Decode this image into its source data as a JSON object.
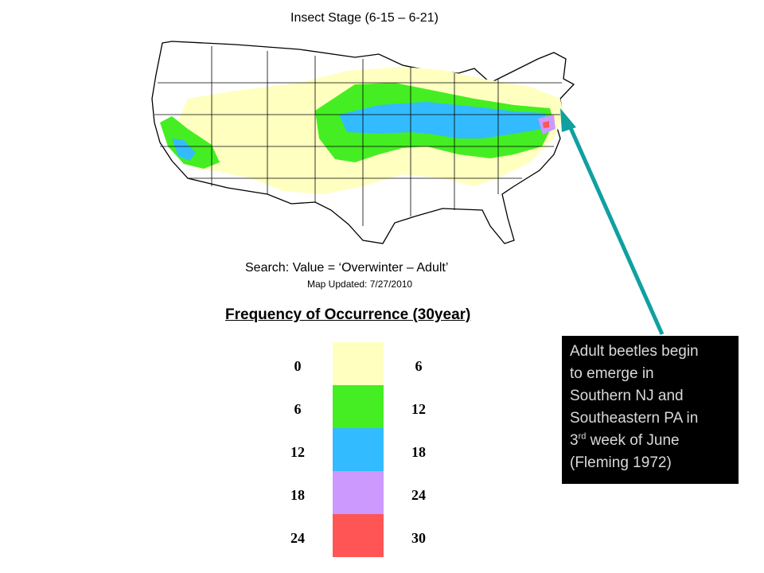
{
  "title": "Insect Stage (6-15 – 6-21)",
  "search_label": "Search: Value = ‘Overwinter – Adult’",
  "map_updated": "Map Updated: 7/27/2010",
  "legend": {
    "title": "Frequency of Occurrence (30year)",
    "classes": [
      {
        "low": "0",
        "high": "6",
        "color": "#ffffc0"
      },
      {
        "low": "6",
        "high": "12",
        "color": "#44ee22"
      },
      {
        "low": "12",
        "high": "18",
        "color": "#33bbff"
      },
      {
        "low": "18",
        "high": "24",
        "color": "#cc99ff"
      },
      {
        "low": "24",
        "high": "30",
        "color": "#ff5555"
      }
    ]
  },
  "callout": {
    "line1": "Adult beetles begin",
    "line2": "to emerge in",
    "line3": "Southern NJ and",
    "line4": "Southeastern PA in",
    "line5_pre": "3",
    "line5_sup": "rd",
    "line5_post": " week of June",
    "line6": "(Fleming 1972)",
    "arrow_color": "#10a0a0"
  }
}
